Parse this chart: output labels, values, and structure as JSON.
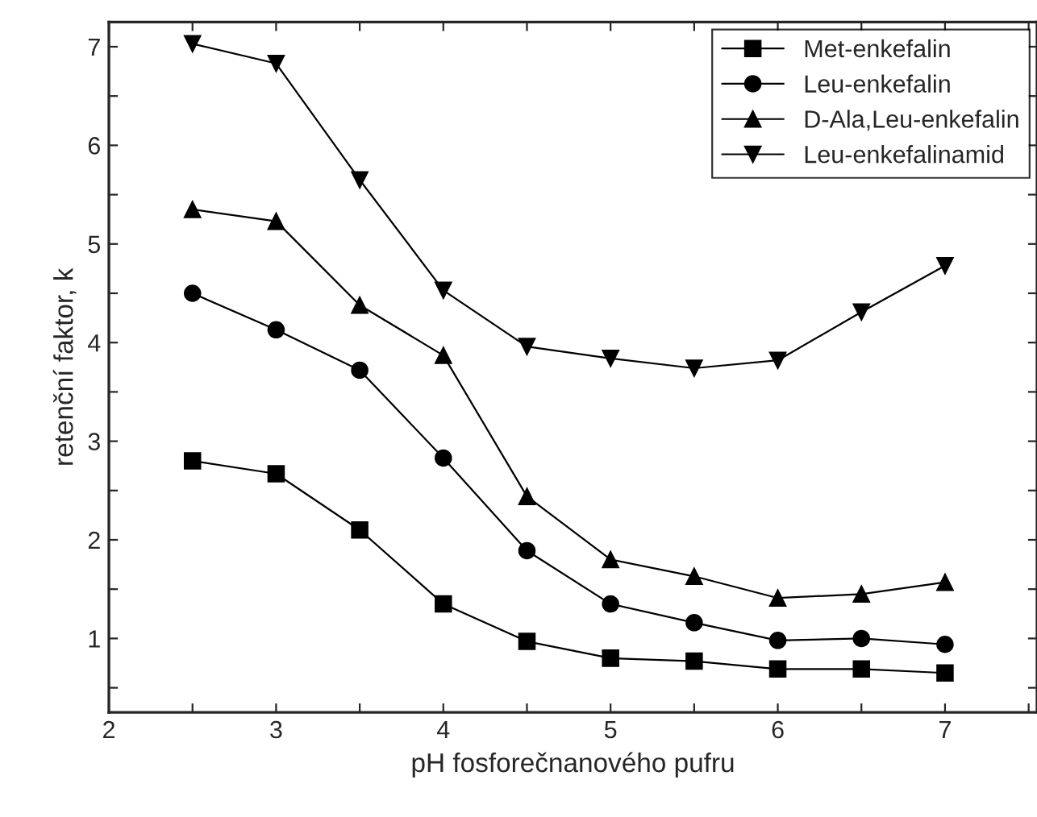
{
  "chart_data": {
    "type": "line",
    "xlabel": "pH fosforečnanového pufru",
    "ylabel": "retenční faktor, k",
    "x": [
      2.5,
      3,
      3.5,
      4,
      4.5,
      5,
      5.5,
      6,
      6.5,
      7
    ],
    "series": [
      {
        "name": "Met-enkefalin",
        "color": "#000000",
        "marker": "square",
        "values": [
          2.8,
          2.67,
          2.1,
          1.35,
          0.97,
          0.8,
          0.77,
          0.69,
          0.69,
          0.65
        ]
      },
      {
        "name": "Leu-enkefalin",
        "color": "#000000",
        "marker": "circle",
        "values": [
          4.5,
          4.13,
          3.72,
          2.83,
          1.89,
          1.35,
          1.16,
          0.98,
          1.0,
          0.94
        ]
      },
      {
        "name": "D-Ala,Leu-enkefalin",
        "color": "#000000",
        "marker": "triangle",
        "values": [
          5.35,
          5.23,
          4.38,
          3.87,
          2.44,
          1.8,
          1.63,
          1.41,
          1.45,
          1.57
        ]
      },
      {
        "name": "Leu-enkefalinamid",
        "color": "#000000",
        "marker": "triangle_down",
        "values": [
          7.03,
          6.83,
          5.65,
          4.53,
          3.96,
          3.84,
          3.74,
          3.82,
          4.31,
          4.78
        ]
      }
    ],
    "xlim": [
      2,
      7.55
    ],
    "ylim": [
      0.25,
      7.25
    ],
    "xticks": [
      2,
      {
        "value": 2.5,
        "label": null
      },
      3,
      {
        "value": 3.5,
        "label": null
      },
      4,
      {
        "value": 4.5,
        "label": null
      },
      5,
      {
        "value": 5.5,
        "label": null
      },
      6,
      {
        "value": 6.5,
        "label": null
      },
      7,
      {
        "value": 7.5,
        "label": null
      }
    ],
    "yticks": [
      {
        "value": 0.5,
        "label": null
      },
      1,
      {
        "value": 1.5,
        "label": null
      },
      2,
      {
        "value": 2.5,
        "label": null
      },
      3,
      {
        "value": 3.5,
        "label": null
      },
      4,
      {
        "value": 4.5,
        "label": null
      },
      5,
      {
        "value": 5.5,
        "label": null
      },
      6,
      {
        "value": 6.5,
        "label": null
      },
      7
    ],
    "legend": "top right",
    "grid": false,
    "line_style": "solid"
  }
}
